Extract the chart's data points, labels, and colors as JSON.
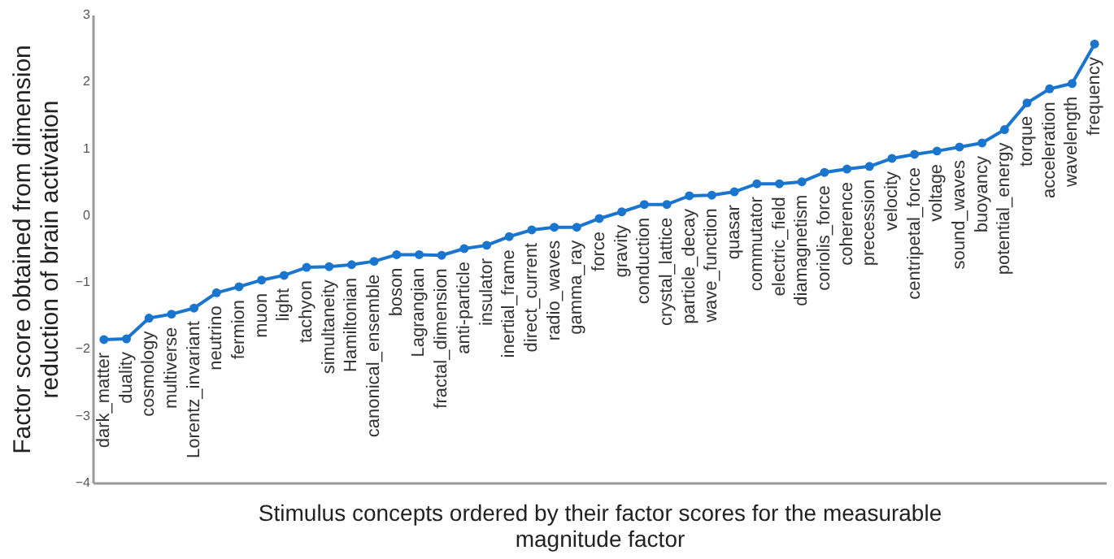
{
  "chart_data": {
    "type": "line",
    "xlabel": "Stimulus concepts ordered by their factor scores for the measurable magnitude factor",
    "ylabel": "Factor score obtained from dimension reduction of brain activation",
    "categories": [
      "dark_matter",
      "duality",
      "cosmology",
      "multiverse",
      "Lorentz_invariant",
      "neutrino",
      "fermion",
      "muon",
      "light",
      "tachyon",
      "simultaneity",
      "Hamiltonian",
      "canonical_ensemble",
      "boson",
      "Lagrangian",
      "fractal_dimension",
      "anti-particle",
      "insulator",
      "inertial_frame",
      "direct_current",
      "radio_waves",
      "gamma_ray",
      "force",
      "gravity",
      "conduction",
      "crystal_lattice",
      "particle_decay",
      "wave_function",
      "quasar",
      "commutator",
      "electric_field",
      "diamagnetism",
      "coriolis_force",
      "coherence",
      "precession",
      "velocity",
      "centripetal_force",
      "voltage",
      "sound_waves",
      "buoyancy",
      "potential_energy",
      "torque",
      "acceleration",
      "wavelength",
      "frequency"
    ],
    "values": [
      -1.86,
      -1.85,
      -1.54,
      -1.48,
      -1.39,
      -1.16,
      -1.07,
      -0.97,
      -0.9,
      -0.78,
      -0.77,
      -0.74,
      -0.69,
      -0.59,
      -0.59,
      -0.6,
      -0.5,
      -0.45,
      -0.32,
      -0.22,
      -0.18,
      -0.18,
      -0.05,
      0.05,
      0.16,
      0.16,
      0.29,
      0.3,
      0.35,
      0.47,
      0.47,
      0.5,
      0.64,
      0.69,
      0.73,
      0.85,
      0.91,
      0.96,
      1.02,
      1.08,
      1.28,
      1.68,
      1.89,
      1.97,
      2.56
    ],
    "color": "#1a75cf",
    "ylim": [
      -4,
      3
    ],
    "yticks": [
      -4,
      -3,
      -2,
      -1,
      0,
      1,
      2,
      3
    ],
    "grid": false,
    "marker": "circle",
    "line_style": "solid"
  }
}
